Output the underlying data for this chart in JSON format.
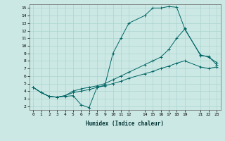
{
  "xlabel": "Humidex (Indice chaleur)",
  "background_color": "#cce8e4",
  "grid_color": "#aad4d0",
  "line_color": "#006666",
  "xlim": [
    -0.5,
    23.5
  ],
  "ylim": [
    1.5,
    15.5
  ],
  "xticks": [
    0,
    1,
    2,
    3,
    4,
    5,
    6,
    7,
    8,
    9,
    10,
    11,
    12,
    14,
    15,
    16,
    17,
    18,
    19,
    21,
    22,
    23
  ],
  "yticks": [
    2,
    3,
    4,
    5,
    6,
    7,
    8,
    9,
    10,
    11,
    12,
    13,
    14,
    15
  ],
  "series": [
    {
      "x": [
        0,
        1,
        2,
        3,
        4,
        5,
        6,
        7,
        8,
        9,
        10,
        11,
        12,
        14,
        15,
        16,
        17,
        18,
        19,
        21,
        22,
        23
      ],
      "y": [
        4.5,
        3.8,
        3.3,
        3.2,
        3.3,
        3.4,
        2.2,
        1.8,
        4.5,
        4.8,
        9.0,
        11.0,
        13.0,
        14.0,
        15.0,
        15.0,
        15.2,
        15.1,
        12.3,
        8.7,
        8.6,
        7.5
      ]
    },
    {
      "x": [
        0,
        1,
        2,
        3,
        4,
        5,
        6,
        7,
        8,
        9,
        10,
        11,
        12,
        14,
        15,
        16,
        17,
        18,
        19,
        21,
        22,
        23
      ],
      "y": [
        4.5,
        3.8,
        3.3,
        3.2,
        3.4,
        4.0,
        4.3,
        4.5,
        4.7,
        5.0,
        5.5,
        6.0,
        6.5,
        7.5,
        8.0,
        8.5,
        9.5,
        11.0,
        12.2,
        8.8,
        8.5,
        7.8
      ]
    },
    {
      "x": [
        0,
        1,
        2,
        3,
        4,
        5,
        6,
        7,
        8,
        9,
        10,
        11,
        12,
        14,
        15,
        16,
        17,
        18,
        19,
        21,
        22,
        23
      ],
      "y": [
        4.5,
        3.8,
        3.3,
        3.2,
        3.4,
        3.8,
        4.0,
        4.2,
        4.5,
        4.7,
        5.0,
        5.3,
        5.7,
        6.3,
        6.6,
        7.0,
        7.3,
        7.7,
        8.0,
        7.2,
        7.0,
        7.2
      ]
    }
  ]
}
